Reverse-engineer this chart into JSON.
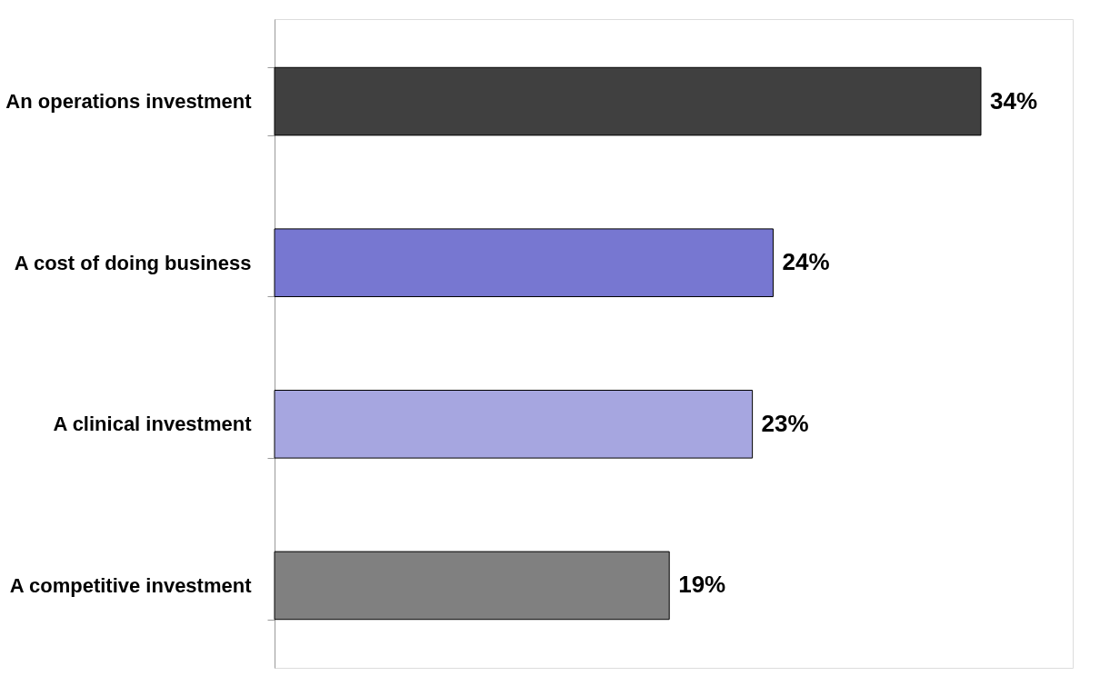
{
  "chart_data": {
    "type": "bar",
    "orientation": "horizontal",
    "categories": [
      "An operations investment",
      "A cost of doing business",
      "A clinical investment",
      "A competitive investment"
    ],
    "values": [
      34,
      24,
      23,
      19
    ],
    "colors": [
      "#404040",
      "#7777d1",
      "#a6a6e0",
      "#808080"
    ],
    "value_labels": [
      "34%",
      "24%",
      "23%",
      "19%"
    ],
    "grid": false
  }
}
